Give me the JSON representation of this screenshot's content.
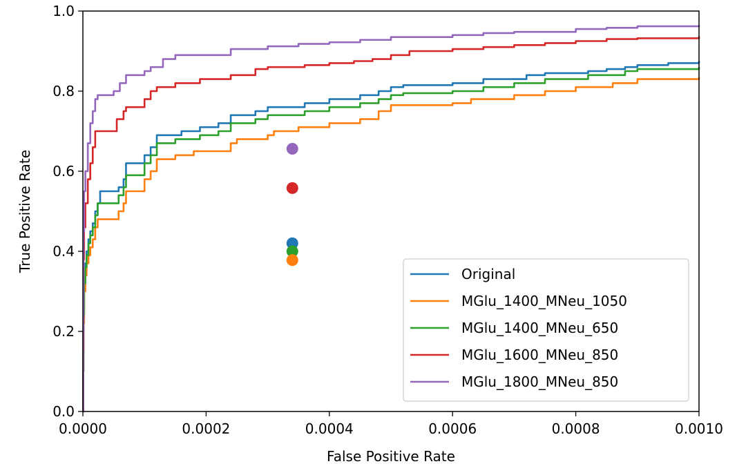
{
  "chart_data": {
    "type": "line",
    "title": "",
    "xlabel": "False Positive Rate",
    "ylabel": "True Positive Rate",
    "xlim": [
      0.0,
      0.001
    ],
    "ylim": [
      0.0,
      1.0
    ],
    "xticks": [
      "0.0000",
      "0.0002",
      "0.0004",
      "0.0006",
      "0.0008",
      "0.0010"
    ],
    "yticks": [
      "0.0",
      "0.2",
      "0.4",
      "0.6",
      "0.8",
      "1.0"
    ],
    "grid": false,
    "legend_position": "lower-right",
    "series": [
      {
        "name": "Original",
        "color": "#1f77b4",
        "points": [
          [
            0,
            0
          ],
          [
            5e-07,
            0.1
          ],
          [
            1e-06,
            0.25
          ],
          [
            2e-06,
            0.33
          ],
          [
            4e-06,
            0.37
          ],
          [
            6e-06,
            0.4
          ],
          [
            9e-06,
            0.43
          ],
          [
            1.2e-05,
            0.45
          ],
          [
            1.6e-05,
            0.47
          ],
          [
            2e-05,
            0.5
          ],
          [
            2.4e-05,
            0.52
          ],
          [
            2.8e-05,
            0.55
          ],
          [
            5e-05,
            0.55
          ],
          [
            5.8e-05,
            0.56
          ],
          [
            6.6e-05,
            0.58
          ],
          [
            7e-05,
            0.62
          ],
          [
            9.5e-05,
            0.62
          ],
          [
            0.0001,
            0.64
          ],
          [
            0.00011,
            0.66
          ],
          [
            0.00012,
            0.69
          ],
          [
            0.00016,
            0.7
          ],
          [
            0.00019,
            0.71
          ],
          [
            0.00022,
            0.72
          ],
          [
            0.00024,
            0.74
          ],
          [
            0.00028,
            0.75
          ],
          [
            0.0003,
            0.76
          ],
          [
            0.00036,
            0.77
          ],
          [
            0.0004,
            0.78
          ],
          [
            0.00045,
            0.79
          ],
          [
            0.00048,
            0.8
          ],
          [
            0.0005,
            0.81
          ],
          [
            0.00052,
            0.815
          ],
          [
            0.0006,
            0.82
          ],
          [
            0.00065,
            0.83
          ],
          [
            0.00072,
            0.84
          ],
          [
            0.00075,
            0.845
          ],
          [
            0.00082,
            0.85
          ],
          [
            0.00085,
            0.855
          ],
          [
            0.00088,
            0.86
          ],
          [
            0.0009,
            0.865
          ],
          [
            0.00095,
            0.87
          ],
          [
            0.001,
            0.875
          ]
        ]
      },
      {
        "name": "MGlu_1400_MNeu_1050",
        "color": "#ff7f0e",
        "points": [
          [
            0,
            0
          ],
          [
            5e-07,
            0.1
          ],
          [
            1e-06,
            0.22
          ],
          [
            2e-06,
            0.3
          ],
          [
            4e-06,
            0.34
          ],
          [
            6e-06,
            0.37
          ],
          [
            9e-06,
            0.39
          ],
          [
            1.2e-05,
            0.41
          ],
          [
            1.6e-05,
            0.43
          ],
          [
            2e-05,
            0.46
          ],
          [
            2.4e-05,
            0.48
          ],
          [
            5e-05,
            0.48
          ],
          [
            5.8e-05,
            0.5
          ],
          [
            6.6e-05,
            0.52
          ],
          [
            7e-05,
            0.55
          ],
          [
            9.5e-05,
            0.55
          ],
          [
            0.0001,
            0.58
          ],
          [
            0.00011,
            0.6
          ],
          [
            0.00012,
            0.63
          ],
          [
            0.00015,
            0.64
          ],
          [
            0.00018,
            0.65
          ],
          [
            0.00021,
            0.65
          ],
          [
            0.00024,
            0.67
          ],
          [
            0.00025,
            0.68
          ],
          [
            0.0003,
            0.69
          ],
          [
            0.00031,
            0.7
          ],
          [
            0.00035,
            0.71
          ],
          [
            0.0004,
            0.72
          ],
          [
            0.00045,
            0.73
          ],
          [
            0.00048,
            0.75
          ],
          [
            0.0005,
            0.765
          ],
          [
            0.0006,
            0.77
          ],
          [
            0.00063,
            0.78
          ],
          [
            0.0007,
            0.79
          ],
          [
            0.00075,
            0.8
          ],
          [
            0.0008,
            0.81
          ],
          [
            0.00086,
            0.82
          ],
          [
            0.0009,
            0.83
          ],
          [
            0.001,
            0.835
          ]
        ]
      },
      {
        "name": "MGlu_1400_MNeu_650",
        "color": "#2ca02c",
        "points": [
          [
            0,
            0
          ],
          [
            5e-07,
            0.1
          ],
          [
            1e-06,
            0.24
          ],
          [
            2e-06,
            0.32
          ],
          [
            4e-06,
            0.36
          ],
          [
            6e-06,
            0.39
          ],
          [
            9e-06,
            0.42
          ],
          [
            1.2e-05,
            0.44
          ],
          [
            1.6e-05,
            0.46
          ],
          [
            2e-05,
            0.49
          ],
          [
            2.4e-05,
            0.52
          ],
          [
            5e-05,
            0.52
          ],
          [
            5.8e-05,
            0.54
          ],
          [
            6.6e-05,
            0.56
          ],
          [
            7e-05,
            0.59
          ],
          [
            9.5e-05,
            0.59
          ],
          [
            0.0001,
            0.62
          ],
          [
            0.00011,
            0.64
          ],
          [
            0.00012,
            0.67
          ],
          [
            0.00015,
            0.68
          ],
          [
            0.00019,
            0.69
          ],
          [
            0.00022,
            0.7
          ],
          [
            0.00024,
            0.72
          ],
          [
            0.00028,
            0.73
          ],
          [
            0.0003,
            0.74
          ],
          [
            0.00036,
            0.75
          ],
          [
            0.0004,
            0.76
          ],
          [
            0.00045,
            0.77
          ],
          [
            0.00048,
            0.78
          ],
          [
            0.0005,
            0.79
          ],
          [
            0.00052,
            0.795
          ],
          [
            0.0006,
            0.8
          ],
          [
            0.00065,
            0.81
          ],
          [
            0.0007,
            0.82
          ],
          [
            0.00075,
            0.83
          ],
          [
            0.00082,
            0.84
          ],
          [
            0.00088,
            0.85
          ],
          [
            0.0009,
            0.855
          ],
          [
            0.001,
            0.86
          ]
        ]
      },
      {
        "name": "MGlu_1600_MNeu_850",
        "color": "#d62728",
        "points": [
          [
            0,
            0
          ],
          [
            5e-07,
            0.15
          ],
          [
            1e-06,
            0.38
          ],
          [
            2e-06,
            0.46
          ],
          [
            4e-06,
            0.52
          ],
          [
            8e-06,
            0.58
          ],
          [
            1.2e-05,
            0.62
          ],
          [
            1.6e-05,
            0.66
          ],
          [
            2e-05,
            0.7
          ],
          [
            4.5e-05,
            0.7
          ],
          [
            5.5e-05,
            0.73
          ],
          [
            6.6e-05,
            0.75
          ],
          [
            7e-05,
            0.76
          ],
          [
            9.5e-05,
            0.76
          ],
          [
            0.0001,
            0.78
          ],
          [
            0.00011,
            0.8
          ],
          [
            0.00012,
            0.81
          ],
          [
            0.00015,
            0.82
          ],
          [
            0.00019,
            0.83
          ],
          [
            0.00022,
            0.83
          ],
          [
            0.00024,
            0.84
          ],
          [
            0.00028,
            0.855
          ],
          [
            0.0003,
            0.86
          ],
          [
            0.00036,
            0.865
          ],
          [
            0.0004,
            0.87
          ],
          [
            0.00044,
            0.875
          ],
          [
            0.00047,
            0.88
          ],
          [
            0.0005,
            0.89
          ],
          [
            0.00053,
            0.9
          ],
          [
            0.0006,
            0.905
          ],
          [
            0.00065,
            0.91
          ],
          [
            0.0007,
            0.915
          ],
          [
            0.00075,
            0.92
          ],
          [
            0.0008,
            0.925
          ],
          [
            0.00085,
            0.93
          ],
          [
            0.0009,
            0.932
          ],
          [
            0.001,
            0.937
          ]
        ]
      },
      {
        "name": "MGlu_1800_MNeu_850",
        "color": "#9467bd",
        "points": [
          [
            0,
            0
          ],
          [
            5e-07,
            0.2
          ],
          [
            1e-06,
            0.45
          ],
          [
            2e-06,
            0.55
          ],
          [
            4e-06,
            0.6
          ],
          [
            8e-06,
            0.67
          ],
          [
            1.2e-05,
            0.72
          ],
          [
            1.6e-05,
            0.75
          ],
          [
            2e-05,
            0.78
          ],
          [
            2.4e-05,
            0.79
          ],
          [
            4.5e-05,
            0.79
          ],
          [
            5e-05,
            0.8
          ],
          [
            6e-05,
            0.82
          ],
          [
            7e-05,
            0.84
          ],
          [
            9.5e-05,
            0.84
          ],
          [
            0.0001,
            0.85
          ],
          [
            0.00011,
            0.86
          ],
          [
            0.00013,
            0.88
          ],
          [
            0.00015,
            0.89
          ],
          [
            0.00019,
            0.89
          ],
          [
            0.00024,
            0.905
          ],
          [
            0.0003,
            0.912
          ],
          [
            0.00035,
            0.918
          ],
          [
            0.0004,
            0.922
          ],
          [
            0.00045,
            0.928
          ],
          [
            0.0005,
            0.935
          ],
          [
            0.0006,
            0.94
          ],
          [
            0.00065,
            0.945
          ],
          [
            0.0007,
            0.948
          ],
          [
            0.0008,
            0.955
          ],
          [
            0.00085,
            0.958
          ],
          [
            0.0009,
            0.962
          ],
          [
            0.001,
            0.965
          ]
        ]
      }
    ],
    "points": [
      {
        "series": "MGlu_1800_MNeu_850",
        "x": 0.00034,
        "y": 0.656,
        "color": "#9467bd"
      },
      {
        "series": "MGlu_1600_MNeu_850",
        "x": 0.00034,
        "y": 0.558,
        "color": "#d62728"
      },
      {
        "series": "Original",
        "x": 0.00034,
        "y": 0.42,
        "color": "#1f77b4"
      },
      {
        "series": "MGlu_1400_MNeu_650",
        "x": 0.00034,
        "y": 0.4,
        "color": "#2ca02c"
      },
      {
        "series": "MGlu_1400_MNeu_1050",
        "x": 0.00034,
        "y": 0.378,
        "color": "#ff7f0e"
      }
    ]
  }
}
